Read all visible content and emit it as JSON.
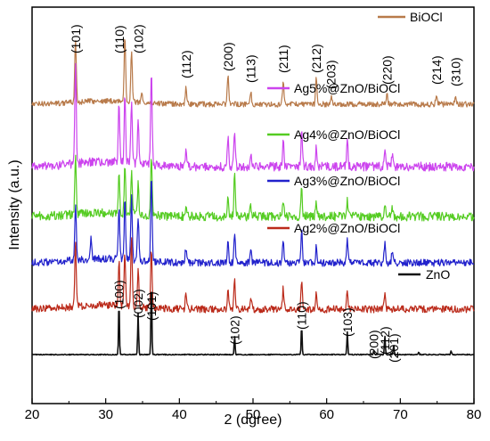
{
  "chart_data": {
    "type": "line",
    "xlabel": "2 (dgree)",
    "ylabel": "Intensity (a.u.)",
    "xlim": [
      20,
      80
    ],
    "x_ticks": [
      20,
      30,
      40,
      50,
      60,
      70,
      80
    ],
    "y_ticks_shown": false,
    "grid": false,
    "series": [
      {
        "name": "BiOCl",
        "color": "#b87a4a",
        "peaks": [
          {
            "x": 25.9,
            "h": 0.95,
            "label": "(101)"
          },
          {
            "x": 32.6,
            "h": 1.0,
            "label": "(110)"
          },
          {
            "x": 33.5,
            "h": 0.8,
            "label": "(102)"
          },
          {
            "x": 34.9,
            "h": 0.18
          },
          {
            "x": 40.9,
            "h": 0.25,
            "label": "(112)"
          },
          {
            "x": 46.6,
            "h": 0.42,
            "label": "(200)"
          },
          {
            "x": 49.7,
            "h": 0.18,
            "label": "(113)"
          },
          {
            "x": 54.1,
            "h": 0.35,
            "label": "(211)"
          },
          {
            "x": 58.6,
            "h": 0.4,
            "label": "(212)"
          },
          {
            "x": 60.6,
            "h": 0.12,
            "label": "(203)"
          },
          {
            "x": 68.2,
            "h": 0.14,
            "label": "(220)"
          },
          {
            "x": 74.9,
            "h": 0.15,
            "label": "(214)"
          },
          {
            "x": 77.5,
            "h": 0.13,
            "label": "(310)"
          }
        ]
      },
      {
        "name": "Ag5%@ZnO/BiOCl",
        "color": "#cc44ee",
        "peaks": [
          {
            "x": 25.9,
            "h": 1.0
          },
          {
            "x": 31.8,
            "h": 0.6
          },
          {
            "x": 32.6,
            "h": 0.7
          },
          {
            "x": 33.5,
            "h": 0.65
          },
          {
            "x": 34.4,
            "h": 0.45
          },
          {
            "x": 36.2,
            "h": 1.0
          },
          {
            "x": 40.9,
            "h": 0.18
          },
          {
            "x": 46.6,
            "h": 0.3
          },
          {
            "x": 47.5,
            "h": 0.35
          },
          {
            "x": 49.7,
            "h": 0.15
          },
          {
            "x": 54.1,
            "h": 0.25
          },
          {
            "x": 56.6,
            "h": 0.35
          },
          {
            "x": 58.6,
            "h": 0.2
          },
          {
            "x": 62.8,
            "h": 0.25
          },
          {
            "x": 67.9,
            "h": 0.2
          },
          {
            "x": 68.9,
            "h": 0.12
          }
        ]
      },
      {
        "name": "Ag4%@ZnO/BiOCl",
        "color": "#55cc22",
        "peaks": [
          {
            "x": 25.9,
            "h": 0.9
          },
          {
            "x": 31.8,
            "h": 0.6
          },
          {
            "x": 32.6,
            "h": 0.7
          },
          {
            "x": 33.5,
            "h": 0.65
          },
          {
            "x": 34.4,
            "h": 0.45
          },
          {
            "x": 36.2,
            "h": 0.85
          },
          {
            "x": 40.9,
            "h": 0.18
          },
          {
            "x": 46.6,
            "h": 0.25
          },
          {
            "x": 47.5,
            "h": 0.6
          },
          {
            "x": 49.7,
            "h": 0.15
          },
          {
            "x": 54.1,
            "h": 0.25
          },
          {
            "x": 56.6,
            "h": 0.4
          },
          {
            "x": 58.6,
            "h": 0.2
          },
          {
            "x": 62.8,
            "h": 0.25
          },
          {
            "x": 67.9,
            "h": 0.22
          },
          {
            "x": 68.9,
            "h": 0.12
          }
        ]
      },
      {
        "name": "Ag3%@ZnO/BiOCl",
        "color": "#2222cc",
        "peaks": [
          {
            "x": 25.9,
            "h": 0.7
          },
          {
            "x": 28.0,
            "h": 0.25
          },
          {
            "x": 31.8,
            "h": 0.6
          },
          {
            "x": 32.6,
            "h": 0.7
          },
          {
            "x": 33.5,
            "h": 0.75
          },
          {
            "x": 34.4,
            "h": 0.5
          },
          {
            "x": 36.2,
            "h": 1.0
          },
          {
            "x": 40.9,
            "h": 0.18
          },
          {
            "x": 46.6,
            "h": 0.25
          },
          {
            "x": 47.5,
            "h": 0.35
          },
          {
            "x": 49.7,
            "h": 0.15
          },
          {
            "x": 54.1,
            "h": 0.25
          },
          {
            "x": 56.6,
            "h": 0.4
          },
          {
            "x": 58.6,
            "h": 0.2
          },
          {
            "x": 62.8,
            "h": 0.28
          },
          {
            "x": 67.9,
            "h": 0.22
          },
          {
            "x": 68.9,
            "h": 0.12
          }
        ]
      },
      {
        "name": "Ag2%@ZnO/BiOCl",
        "color": "#bb2a1a",
        "peaks": [
          {
            "x": 25.9,
            "h": 0.8
          },
          {
            "x": 31.8,
            "h": 0.55
          },
          {
            "x": 32.6,
            "h": 0.65
          },
          {
            "x": 33.5,
            "h": 0.9
          },
          {
            "x": 34.4,
            "h": 0.45
          },
          {
            "x": 36.2,
            "h": 0.75
          },
          {
            "x": 40.9,
            "h": 0.18
          },
          {
            "x": 46.6,
            "h": 0.25
          },
          {
            "x": 47.5,
            "h": 0.35
          },
          {
            "x": 49.7,
            "h": 0.15
          },
          {
            "x": 54.1,
            "h": 0.25
          },
          {
            "x": 56.6,
            "h": 0.35
          },
          {
            "x": 58.6,
            "h": 0.2
          },
          {
            "x": 62.8,
            "h": 0.22
          },
          {
            "x": 67.9,
            "h": 0.18
          }
        ]
      },
      {
        "name": "ZnO",
        "color": "#111111",
        "peaks": [
          {
            "x": 31.8,
            "h": 0.7,
            "label": "(100)"
          },
          {
            "x": 34.4,
            "h": 0.55,
            "label": "(002)"
          },
          {
            "x": 36.2,
            "h": 1.0,
            "label": "(101)"
          },
          {
            "x": 47.5,
            "h": 0.25,
            "label": "(102)"
          },
          {
            "x": 56.6,
            "h": 0.38,
            "label": "(110)"
          },
          {
            "x": 62.8,
            "h": 0.3,
            "label": "(103)"
          },
          {
            "x": 66.4,
            "h": 0.05,
            "label": "(200)"
          },
          {
            "x": 67.9,
            "h": 0.25,
            "label": "(112)"
          },
          {
            "x": 69.1,
            "h": 0.12,
            "label": "(201)"
          },
          {
            "x": 72.5,
            "h": 0.03
          },
          {
            "x": 76.9,
            "h": 0.05
          }
        ]
      }
    ]
  }
}
